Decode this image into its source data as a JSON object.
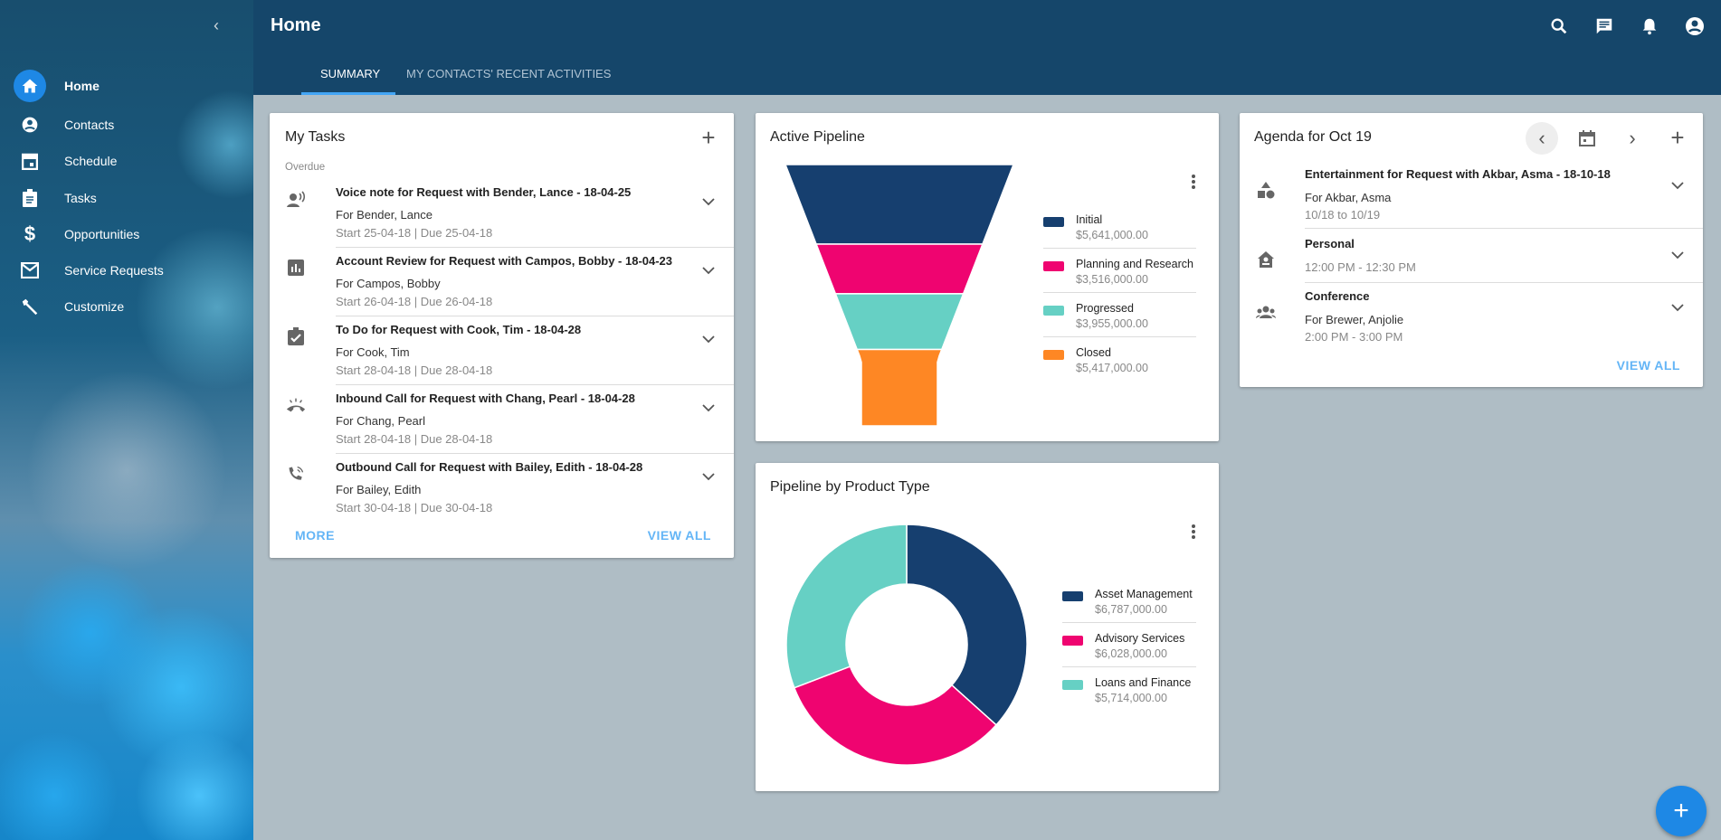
{
  "header": {
    "title": "Home",
    "tabs": [
      {
        "label": "SUMMARY",
        "active": true
      },
      {
        "label": "MY CONTACTS' RECENT ACTIVITIES",
        "active": false
      }
    ],
    "icons": [
      "search-icon",
      "chat-icon",
      "bell-icon",
      "account-icon"
    ]
  },
  "sidebar": {
    "items": [
      {
        "label": "Home",
        "icon": "home-icon",
        "active": true
      },
      {
        "label": "Contacts",
        "icon": "contact-icon"
      },
      {
        "label": "Schedule",
        "icon": "calendar-icon"
      },
      {
        "label": "Tasks",
        "icon": "clipboard-icon"
      },
      {
        "label": "Opportunities",
        "icon": "dollar-icon"
      },
      {
        "label": "Service Requests",
        "icon": "mail-icon"
      },
      {
        "label": "Customize",
        "icon": "wrench-icon"
      }
    ]
  },
  "tasks": {
    "title": "My Tasks",
    "section": "Overdue",
    "items": [
      {
        "title": "Voice note for Request with Bender, Lance - 18-04-25",
        "for": "For Bender, Lance",
        "dates": "Start 25-04-18 | Due 25-04-18",
        "icon": "voice-icon"
      },
      {
        "title": "Account Review for Request with Campos, Bobby - 18-04-23",
        "for": "For Campos, Bobby",
        "dates": "Start 26-04-18 | Due 26-04-18",
        "icon": "chart-icon"
      },
      {
        "title": "To Do for Request with Cook, Tim - 18-04-28",
        "for": "For Cook, Tim",
        "dates": "Start 28-04-18 | Due 28-04-18",
        "icon": "clipboard-check-icon"
      },
      {
        "title": "Inbound Call for Request with Chang, Pearl - 18-04-28",
        "for": "For Chang, Pearl",
        "dates": "Start 28-04-18 | Due 28-04-18",
        "icon": "ringing-phone-icon"
      },
      {
        "title": "Outbound Call for Request with Bailey, Edith - 18-04-28",
        "for": "For Bailey, Edith",
        "dates": "Start 30-04-18 | Due 30-04-18",
        "icon": "phone-outbound-icon"
      }
    ],
    "more": "MORE",
    "view_all": "VIEW ALL"
  },
  "agenda": {
    "title": "Agenda for Oct 19",
    "items": [
      {
        "title": "Entertainment for Request with Akbar, Asma - 18-10-18",
        "for": "For Akbar, Asma",
        "time": "10/18 to 10/19",
        "icon": "shapes-icon"
      },
      {
        "title": "Personal",
        "for": "",
        "time": "12:00 PM - 12:30 PM",
        "icon": "home-person-icon"
      },
      {
        "title": "Conference",
        "for": "For Brewer, Anjolie",
        "time": "2:00 PM - 3:00 PM",
        "icon": "group-icon"
      }
    ],
    "view_all": "VIEW ALL"
  },
  "colors": {
    "navy": "#163f6f",
    "pink": "#ef0470",
    "teal": "#66d0c4",
    "orange": "#fe8724",
    "link": "#64b5f6",
    "header": "#15466a"
  },
  "chart_data": [
    {
      "type": "funnel",
      "title": "Active Pipeline",
      "categories": [
        "Initial",
        "Planning and Research",
        "Progressed",
        "Closed"
      ],
      "values": [
        5641000,
        3516000,
        3955000,
        5417000
      ],
      "labels": [
        "$5,641,000.00",
        "$3,516,000.00",
        "$3,955,000.00",
        "$5,417,000.00"
      ],
      "colors": [
        "#163f6f",
        "#ef0470",
        "#66d0c4",
        "#fe8724"
      ],
      "legend": "right"
    },
    {
      "type": "pie",
      "donut": true,
      "title": "Pipeline by Product Type",
      "categories": [
        "Asset Management",
        "Advisory Services",
        "Loans and Finance"
      ],
      "values": [
        6787000,
        6028000,
        5714000
      ],
      "labels": [
        "$6,787,000.00",
        "$6,028,000.00",
        "$5,714,000.00"
      ],
      "colors": [
        "#163f6f",
        "#ef0470",
        "#66d0c4"
      ],
      "legend": "right"
    }
  ]
}
